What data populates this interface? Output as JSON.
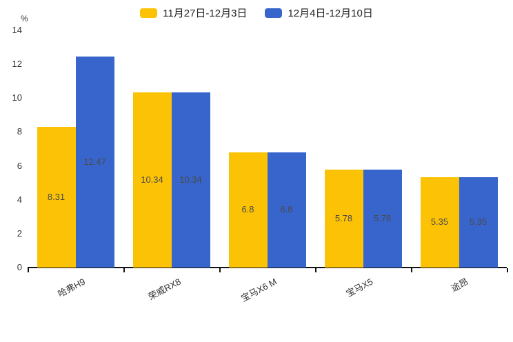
{
  "chart_data": {
    "type": "bar",
    "title": "",
    "categories": [
      "哈弗H9",
      "荣威RX8",
      "宝马X6 M",
      "宝马X5",
      "途昂"
    ],
    "series": [
      {
        "name": "11月27日-12月3日",
        "color": "#FCC306",
        "values": [
          8.31,
          10.34,
          6.8,
          5.78,
          5.35
        ]
      },
      {
        "name": "12月4日-12月10日",
        "color": "#3765CC",
        "values": [
          12.47,
          10.34,
          6.8,
          5.78,
          5.35
        ]
      }
    ],
    "xlabel": "",
    "ylabel": "%",
    "ylim": [
      0,
      14
    ],
    "yticks": [
      0,
      2,
      4,
      6,
      8,
      10,
      12,
      14
    ],
    "grid": false,
    "legend_position": "top-center",
    "value_labels": true,
    "value_label_color": "#4a4a4a",
    "axis_color": "#111111",
    "background": "#ffffff",
    "x_label_rotation_deg": -28
  }
}
